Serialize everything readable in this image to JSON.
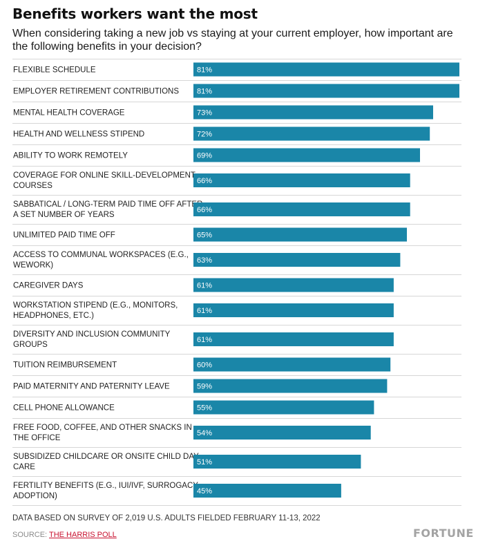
{
  "header": {
    "title": "Benefits workers want the most",
    "subtitle": "When considering taking a new job vs staying at your current employer, how important are the following benefits in your decision?"
  },
  "chart_data": {
    "type": "bar",
    "orientation": "horizontal",
    "categories": [
      [
        "FLEXIBLE SCHEDULE"
      ],
      [
        "EMPLOYER RETIREMENT CONTRIBUTIONS"
      ],
      [
        "MENTAL HEALTH COVERAGE"
      ],
      [
        "HEALTH AND WELLNESS STIPEND"
      ],
      [
        "ABILITY TO WORK REMOTELY"
      ],
      [
        "COVERAGE FOR ONLINE SKILL-DEVELOPMENT",
        "COURSES"
      ],
      [
        "SABBATICAL / LONG-TERM PAID TIME OFF AFTER",
        "A SET NUMBER OF YEARS"
      ],
      [
        "UNLIMITED PAID TIME OFF"
      ],
      [
        "ACCESS TO COMMUNAL WORKSPACES (E.G.,",
        "WEWORK)"
      ],
      [
        "CAREGIVER DAYS"
      ],
      [
        "WORKSTATION STIPEND (E.G., MONITORS,",
        "HEADPHONES, ETC.)"
      ],
      [
        "DIVERSITY AND INCLUSION COMMUNITY",
        "GROUPS"
      ],
      [
        "TUITION REIMBURSEMENT"
      ],
      [
        "PAID MATERNITY AND PATERNITY LEAVE"
      ],
      [
        "CELL PHONE ALLOWANCE"
      ],
      [
        "FREE FOOD, COFFEE, AND OTHER SNACKS IN",
        "THE OFFICE"
      ],
      [
        "SUBSIDIZED CHILDCARE OR ONSITE CHILD DAY-",
        "CARE"
      ],
      [
        "FERTILITY BENEFITS (E.G., IUI/IVF, SURROGACY,",
        "ADOPTION)"
      ]
    ],
    "values": [
      81,
      81,
      73,
      72,
      69,
      66,
      66,
      65,
      63,
      61,
      61,
      61,
      60,
      59,
      55,
      54,
      51,
      45
    ],
    "value_suffix": "%",
    "xlim": [
      0,
      81
    ],
    "bar_color": "#1a86a8",
    "grid": false
  },
  "footer": {
    "note": "DATA BASED ON SURVEY OF 2,019 U.S. ADULTS FIELDED FEBRUARY 11-13, 2022",
    "source_prefix": "SOURCE: ",
    "source_link": "THE HARRIS POLL",
    "logo": "FORTUNE"
  }
}
